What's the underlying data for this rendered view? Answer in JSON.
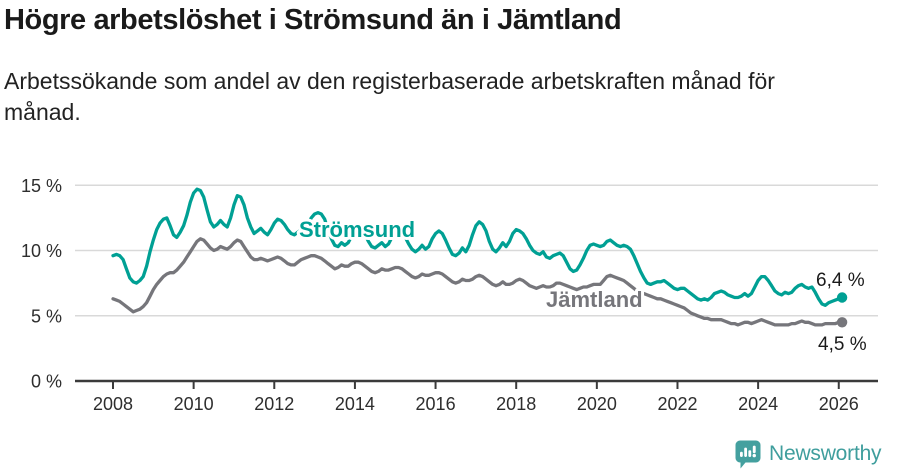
{
  "title": "Högre arbetslöshet i Strömsund än i Jämtland",
  "subtitle_lines": [
    "Arbetssökande som andel av den registerbaserade arbetskraften månad för",
    "månad."
  ],
  "brand": {
    "name": "Newsworthy",
    "icon": "speech-bubble-bar-chart-icon",
    "color": "#44a09f"
  },
  "colors": {
    "stromsund": "#00a094",
    "jamtland": "#76767b",
    "grid": "#d9d9d9",
    "axis": "#3b3b3b",
    "text": "#1a1a1a",
    "background": "#ffffff"
  },
  "chart_data": {
    "type": "line",
    "x_unit": "month",
    "x_range": [
      "2008-01",
      "2026-02"
    ],
    "ylim": [
      0,
      15
    ],
    "grid": "horizontal",
    "legend_position": "inline-labels",
    "y_ticks": [
      {
        "value": 0,
        "label": "0 %"
      },
      {
        "value": 5,
        "label": "5 %"
      },
      {
        "value": 10,
        "label": "10 %"
      },
      {
        "value": 15,
        "label": "15 %"
      }
    ],
    "x_ticks": [
      {
        "year": 2008,
        "label": "2008"
      },
      {
        "year": 2010,
        "label": "2010"
      },
      {
        "year": 2012,
        "label": "2012"
      },
      {
        "year": 2014,
        "label": "2014"
      },
      {
        "year": 2016,
        "label": "2016"
      },
      {
        "year": 2018,
        "label": "2018"
      },
      {
        "year": 2020,
        "label": "2020"
      },
      {
        "year": 2022,
        "label": "2022"
      },
      {
        "year": 2024,
        "label": "2024"
      },
      {
        "year": 2026,
        "label": "2026"
      }
    ],
    "series": [
      {
        "name": "Strömsund",
        "color": "#00a094",
        "end_value": 6.4,
        "end_label": "6,4 %",
        "values": [
          9.6,
          9.7,
          9.6,
          9.3,
          8.6,
          7.9,
          7.6,
          7.5,
          7.7,
          8.0,
          8.8,
          9.9,
          10.8,
          11.6,
          12.1,
          12.4,
          12.5,
          11.9,
          11.2,
          11.0,
          11.4,
          11.9,
          12.7,
          13.7,
          14.4,
          14.7,
          14.6,
          14.1,
          13.1,
          12.2,
          11.8,
          12.0,
          12.3,
          12.0,
          11.8,
          12.5,
          13.5,
          14.2,
          14.1,
          13.5,
          12.5,
          11.8,
          11.3,
          11.5,
          11.7,
          11.4,
          11.2,
          11.6,
          12.1,
          12.4,
          12.3,
          12.0,
          11.6,
          11.3,
          11.2,
          11.4,
          11.6,
          11.5,
          11.9,
          12.5,
          12.8,
          12.9,
          12.8,
          12.4,
          11.6,
          10.9,
          10.4,
          10.3,
          10.6,
          10.4,
          10.6,
          11.1,
          11.5,
          11.7,
          11.6,
          11.2,
          10.7,
          10.3,
          10.2,
          10.4,
          10.6,
          10.3,
          10.5,
          11.0,
          11.4,
          11.6,
          11.5,
          11.0,
          10.5,
          10.1,
          9.9,
          10.1,
          10.4,
          10.1,
          10.3,
          10.9,
          11.3,
          11.5,
          11.3,
          10.8,
          10.2,
          9.7,
          9.6,
          9.8,
          10.2,
          9.9,
          10.4,
          11.2,
          11.9,
          12.2,
          12.0,
          11.5,
          10.7,
          10.1,
          9.9,
          10.2,
          10.6,
          10.3,
          10.7,
          11.3,
          11.6,
          11.5,
          11.3,
          10.9,
          10.4,
          10.0,
          9.8,
          9.7,
          9.9,
          9.5,
          9.4,
          9.6,
          9.7,
          9.8,
          9.6,
          9.1,
          8.6,
          8.4,
          8.5,
          8.9,
          9.4,
          10.0,
          10.4,
          10.5,
          10.4,
          10.3,
          10.4,
          10.7,
          10.8,
          10.6,
          10.4,
          10.3,
          10.4,
          10.3,
          10.1,
          9.6,
          9.0,
          8.4,
          7.9,
          7.5,
          7.4,
          7.5,
          7.6,
          7.6,
          7.7,
          7.5,
          7.3,
          7.1,
          7.0,
          7.1,
          7.1,
          6.9,
          6.7,
          6.5,
          6.3,
          6.2,
          6.3,
          6.2,
          6.4,
          6.7,
          6.8,
          6.9,
          6.8,
          6.6,
          6.5,
          6.4,
          6.4,
          6.5,
          6.7,
          6.5,
          6.7,
          7.2,
          7.7,
          8.0,
          8.0,
          7.7,
          7.3,
          6.9,
          6.7,
          6.6,
          6.8,
          6.7,
          6.8,
          7.1,
          7.3,
          7.4,
          7.2,
          7.1,
          7.2,
          6.8,
          6.3,
          5.9,
          5.8,
          6.0,
          6.1,
          6.2,
          6.3,
          6.4
        ]
      },
      {
        "name": "Jämtland",
        "color": "#76767b",
        "end_value": 4.5,
        "end_label": "4,5 %",
        "values": [
          6.3,
          6.2,
          6.1,
          5.9,
          5.7,
          5.5,
          5.3,
          5.4,
          5.5,
          5.7,
          6.0,
          6.5,
          7.0,
          7.4,
          7.7,
          8.0,
          8.2,
          8.3,
          8.3,
          8.5,
          8.8,
          9.1,
          9.5,
          9.9,
          10.3,
          10.7,
          10.9,
          10.8,
          10.5,
          10.2,
          10.0,
          10.1,
          10.3,
          10.2,
          10.1,
          10.3,
          10.6,
          10.8,
          10.7,
          10.3,
          9.9,
          9.5,
          9.3,
          9.3,
          9.4,
          9.3,
          9.2,
          9.3,
          9.4,
          9.5,
          9.4,
          9.2,
          9.0,
          8.9,
          8.9,
          9.1,
          9.3,
          9.4,
          9.5,
          9.6,
          9.6,
          9.5,
          9.4,
          9.2,
          9.0,
          8.8,
          8.6,
          8.7,
          8.9,
          8.8,
          8.8,
          9.0,
          9.1,
          9.1,
          9.0,
          8.8,
          8.6,
          8.4,
          8.3,
          8.4,
          8.6,
          8.5,
          8.5,
          8.6,
          8.7,
          8.7,
          8.6,
          8.4,
          8.2,
          8.0,
          7.9,
          8.0,
          8.2,
          8.1,
          8.1,
          8.2,
          8.3,
          8.3,
          8.2,
          8.0,
          7.8,
          7.6,
          7.5,
          7.6,
          7.8,
          7.7,
          7.7,
          7.8,
          8.0,
          8.1,
          8.0,
          7.8,
          7.6,
          7.4,
          7.3,
          7.4,
          7.6,
          7.4,
          7.4,
          7.5,
          7.7,
          7.8,
          7.7,
          7.5,
          7.3,
          7.2,
          7.1,
          7.2,
          7.3,
          7.2,
          7.2,
          7.3,
          7.5,
          7.5,
          7.4,
          7.3,
          7.2,
          7.1,
          7.0,
          7.1,
          7.2,
          7.2,
          7.3,
          7.4,
          7.4,
          7.4,
          7.7,
          8.0,
          8.1,
          8.0,
          7.9,
          7.8,
          7.7,
          7.5,
          7.3,
          7.1,
          6.9,
          6.8,
          6.7,
          6.6,
          6.5,
          6.4,
          6.3,
          6.3,
          6.2,
          6.1,
          6.0,
          5.9,
          5.8,
          5.7,
          5.6,
          5.4,
          5.2,
          5.1,
          5.0,
          4.9,
          4.8,
          4.8,
          4.7,
          4.7,
          4.7,
          4.7,
          4.6,
          4.5,
          4.4,
          4.4,
          4.3,
          4.4,
          4.5,
          4.5,
          4.4,
          4.5,
          4.6,
          4.7,
          4.6,
          4.5,
          4.4,
          4.3,
          4.3,
          4.3,
          4.3,
          4.3,
          4.4,
          4.4,
          4.5,
          4.6,
          4.5,
          4.5,
          4.4,
          4.3,
          4.3,
          4.3,
          4.4,
          4.4,
          4.4,
          4.4,
          4.5,
          4.5
        ]
      }
    ]
  }
}
